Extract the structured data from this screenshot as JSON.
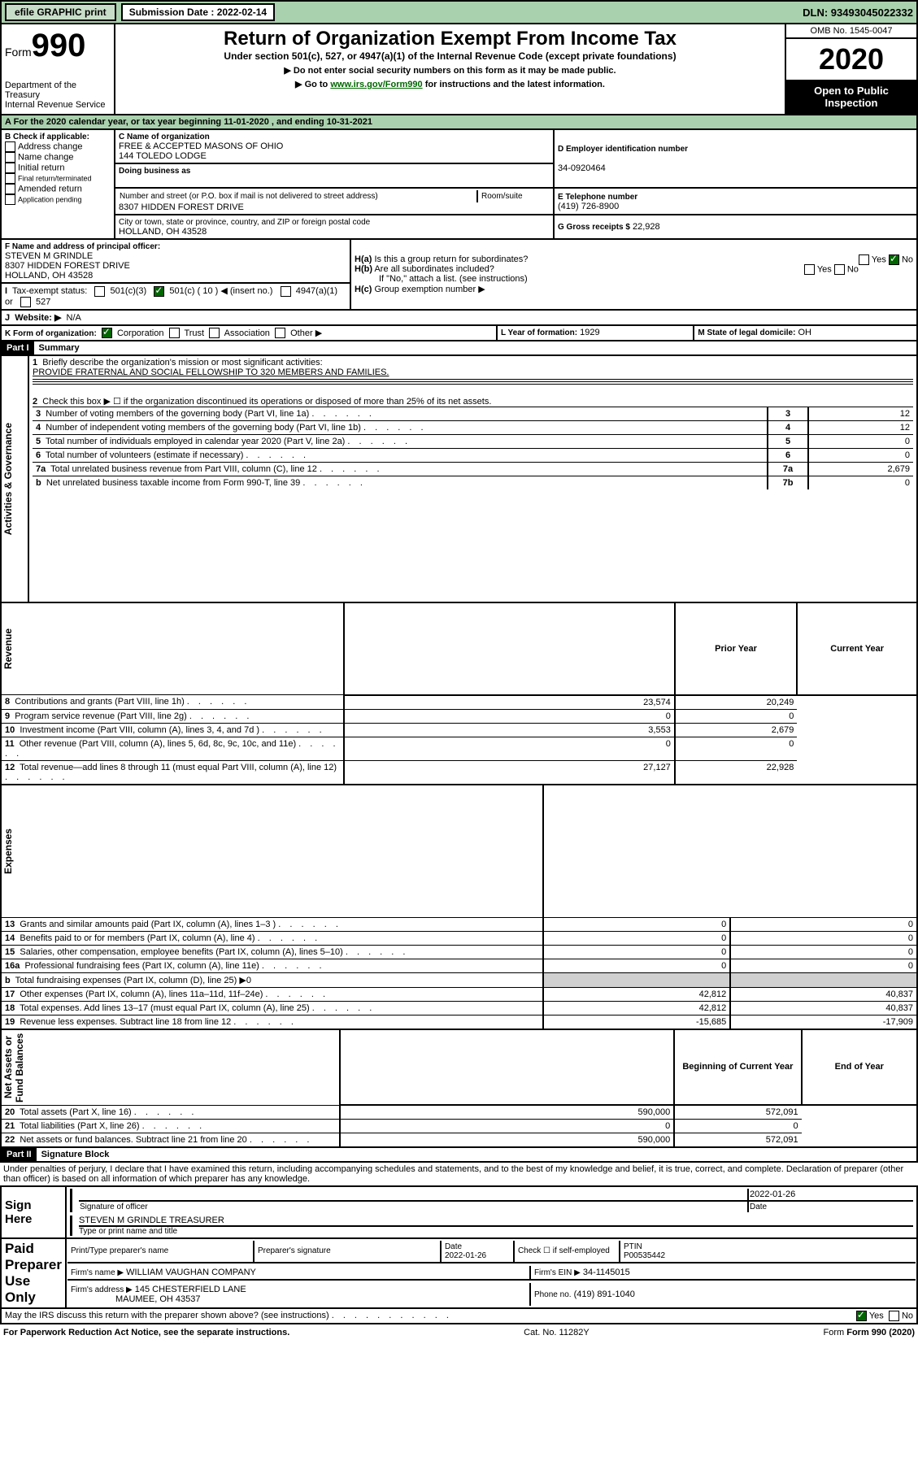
{
  "topbar": {
    "efile": "efile GRAPHIC print",
    "subdate_lbl": "Submission Date : 2022-02-14",
    "dln": "DLN: 93493045022332"
  },
  "hdr": {
    "form_word": "Form",
    "form_num": "990",
    "dept": "Department of the Treasury\nInternal Revenue Service",
    "title": "Return of Organization Exempt From Income Tax",
    "sub1": "Under section 501(c), 527, or 4947(a)(1) of the Internal Revenue Code (except private foundations)",
    "sub2": "▶ Do not enter social security numbers on this form as it may be made public.",
    "sub3a": "▶ Go to ",
    "sub3link": "www.irs.gov/Form990",
    "sub3b": " for instructions and the latest information.",
    "omb": "OMB No. 1545-0047",
    "year": "2020",
    "open": "Open to Public Inspection"
  },
  "A": {
    "line": "A For the 2020 calendar year, or tax year beginning 11-01-2020    , and ending 10-31-2021"
  },
  "B": {
    "lbl": "B Check if applicable:",
    "i1": "Address change",
    "i2": "Name change",
    "i3": "Initial return",
    "i4": "Final return/terminated",
    "i5": "Amended return",
    "i6": "Application pending"
  },
  "C": {
    "lbl": "C Name of organization",
    "name": "FREE & ACCEPTED MASONS OF OHIO\n144 TOLEDO LODGE",
    "dba": "Doing business as",
    "addr_lbl": "Number and street (or P.O. box if mail is not delivered to street address)",
    "room": "Room/suite",
    "addr": "8307 HIDDEN FOREST DRIVE",
    "city_lbl": "City or town, state or province, country, and ZIP or foreign postal code",
    "city": "HOLLAND, OH  43528"
  },
  "D": {
    "lbl": "D Employer identification number",
    "val": "34-0920464"
  },
  "E": {
    "lbl": "E Telephone number",
    "val": "(419) 726-8900"
  },
  "G": {
    "lbl": "G Gross receipts $",
    "val": "22,928"
  },
  "F": {
    "lbl": "F  Name and address of principal officer:",
    "name": "STEVEN M GRINDLE",
    "addr": "8307 HIDDEN FOREST DRIVE",
    "city": "HOLLAND, OH  43528"
  },
  "H": {
    "a": "H(a)",
    "a_txt": "Is this a group return for subordinates?",
    "b": "H(b)",
    "b_txt": "Are all subordinates included?",
    "b_note": "If \"No,\" attach a list. (see instructions)",
    "c": "H(c)",
    "c_txt": "Group exemption number ▶",
    "yes": "Yes",
    "no": "No"
  },
  "I": {
    "lbl": "I",
    "txt": "Tax-exempt status:",
    "o1": "501(c)(3)",
    "o2": "501(c) ( 10 ) ◀ (insert no.)",
    "o3": "4947(a)(1) or",
    "o4": "527"
  },
  "J": {
    "lbl": "J",
    "txt": "Website: ▶",
    "val": "N/A"
  },
  "K": {
    "lbl": "K Form of organization:",
    "o1": "Corporation",
    "o2": "Trust",
    "o3": "Association",
    "o4": "Other ▶"
  },
  "L": {
    "lbl": "L Year of formation:",
    "val": "1929"
  },
  "M": {
    "lbl": "M State of legal domicile:",
    "val": "OH"
  },
  "P1": {
    "bar": "Part I",
    "title": "Summary",
    "l1": "Briefly describe the organization's mission or most significant activities:",
    "l1v": "PROVIDE FRATERNAL AND SOCIAL FELLOWSHIP TO 320 MEMBERS AND FAMILIES.",
    "l2": "Check this box ▶ ☐  if the organization discontinued its operations or disposed of more than 25% of its net assets.",
    "rows": [
      {
        "n": "3",
        "t": "Number of voting members of the governing body (Part VI, line 1a)",
        "c": "3",
        "v": "12"
      },
      {
        "n": "4",
        "t": "Number of independent voting members of the governing body (Part VI, line 1b)",
        "c": "4",
        "v": "12"
      },
      {
        "n": "5",
        "t": "Total number of individuals employed in calendar year 2020 (Part V, line 2a)",
        "c": "5",
        "v": "0"
      },
      {
        "n": "6",
        "t": "Total number of volunteers (estimate if necessary)",
        "c": "6",
        "v": "0"
      },
      {
        "n": "7a",
        "t": "Total unrelated business revenue from Part VIII, column (C), line 12",
        "c": "7a",
        "v": "2,679"
      },
      {
        "n": "b",
        "t": "Net unrelated business taxable income from Form 990-T, line 39",
        "c": "7b",
        "v": "0"
      }
    ],
    "hdr_prior": "Prior Year",
    "hdr_curr": "Current Year",
    "rev": [
      {
        "n": "8",
        "t": "Contributions and grants (Part VIII, line 1h)",
        "p": "23,574",
        "c": "20,249"
      },
      {
        "n": "9",
        "t": "Program service revenue (Part VIII, line 2g)",
        "p": "0",
        "c": "0"
      },
      {
        "n": "10",
        "t": "Investment income (Part VIII, column (A), lines 3, 4, and 7d )",
        "p": "3,553",
        "c": "2,679"
      },
      {
        "n": "11",
        "t": "Other revenue (Part VIII, column (A), lines 5, 6d, 8c, 9c, 10c, and 11e)",
        "p": "0",
        "c": "0"
      },
      {
        "n": "12",
        "t": "Total revenue—add lines 8 through 11 (must equal Part VIII, column (A), line 12)",
        "p": "27,127",
        "c": "22,928"
      }
    ],
    "exp": [
      {
        "n": "13",
        "t": "Grants and similar amounts paid (Part IX, column (A), lines 1–3 )",
        "p": "0",
        "c": "0"
      },
      {
        "n": "14",
        "t": "Benefits paid to or for members (Part IX, column (A), line 4)",
        "p": "0",
        "c": "0"
      },
      {
        "n": "15",
        "t": "Salaries, other compensation, employee benefits (Part IX, column (A), lines 5–10)",
        "p": "0",
        "c": "0"
      },
      {
        "n": "16a",
        "t": "Professional fundraising fees (Part IX, column (A), line 11e)",
        "p": "0",
        "c": "0"
      },
      {
        "n": "b",
        "t": "Total fundraising expenses (Part IX, column (D), line 25) ▶0",
        "p": "",
        "c": ""
      },
      {
        "n": "17",
        "t": "Other expenses (Part IX, column (A), lines 11a–11d, 11f–24e)",
        "p": "42,812",
        "c": "40,837"
      },
      {
        "n": "18",
        "t": "Total expenses. Add lines 13–17 (must equal Part IX, column (A), line 25)",
        "p": "42,812",
        "c": "40,837"
      },
      {
        "n": "19",
        "t": "Revenue less expenses. Subtract line 18 from line 12",
        "p": "-15,685",
        "c": "-17,909"
      }
    ],
    "hdr_boy": "Beginning of Current Year",
    "hdr_eoy": "End of Year",
    "net": [
      {
        "n": "20",
        "t": "Total assets (Part X, line 16)",
        "p": "590,000",
        "c": "572,091"
      },
      {
        "n": "21",
        "t": "Total liabilities (Part X, line 26)",
        "p": "0",
        "c": "0"
      },
      {
        "n": "22",
        "t": "Net assets or fund balances. Subtract line 21 from line 20",
        "p": "590,000",
        "c": "572,091"
      }
    ],
    "vlabs": {
      "ag": "Activities & Governance",
      "rev": "Revenue",
      "exp": "Expenses",
      "net": "Net Assets or Fund Balances"
    }
  },
  "P2": {
    "bar": "Part II",
    "title": "Signature Block",
    "decl": "Under penalties of perjury, I declare that I have examined this return, including accompanying schedules and statements, and to the best of my knowledge and belief, it is true, correct, and complete. Declaration of preparer (other than officer) is based on all information of which preparer has any knowledge.",
    "sign_here": "Sign Here",
    "sig_off": "Signature of officer",
    "date_lbl": "Date",
    "date": "2022-01-26",
    "officer": "STEVEN M GRINDLE  TREASURER",
    "type_lbl": "Type or print name and title",
    "paid": "Paid Preparer Use Only",
    "pt_name_lbl": "Print/Type preparer's name",
    "pt_sig_lbl": "Preparer's signature",
    "pt_date_lbl": "Date",
    "pt_date": "2022-01-26",
    "pt_chk": "Check ☐ if self-employed",
    "ptin_lbl": "PTIN",
    "ptin": "P00535442",
    "firm_name_lbl": "Firm's name    ▶",
    "firm_name": "WILLIAM VAUGHAN COMPANY",
    "firm_ein_lbl": "Firm's EIN ▶",
    "firm_ein": "34-1145015",
    "firm_addr_lbl": "Firm's address ▶",
    "firm_addr": "145 CHESTERFIELD LANE",
    "firm_city": "MAUMEE, OH  43537",
    "phone_lbl": "Phone no.",
    "phone": "(419) 891-1040",
    "discuss": "May the IRS discuss this return with the preparer shown above? (see instructions)",
    "yes": "Yes",
    "no": "No"
  },
  "footer": {
    "l": "For Paperwork Reduction Act Notice, see the separate instructions.",
    "c": "Cat. No. 11282Y",
    "r": "Form 990 (2020)"
  }
}
